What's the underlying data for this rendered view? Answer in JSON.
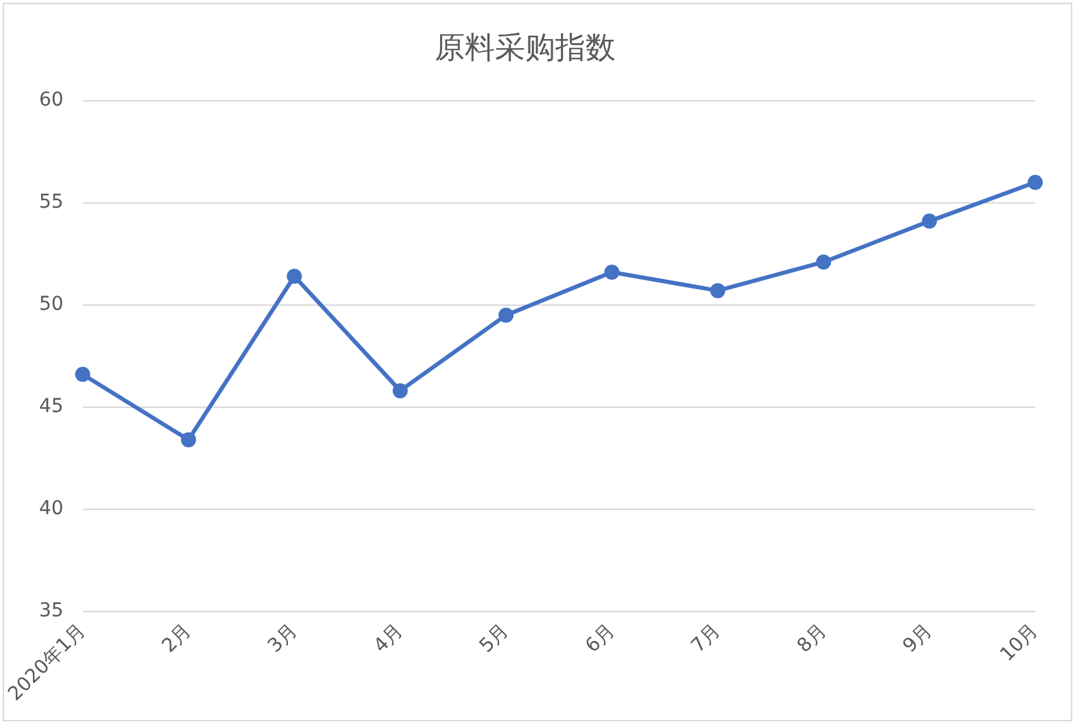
{
  "chart_data": {
    "type": "line",
    "title": "原料采购指数",
    "categories": [
      "2020年1月",
      "2月",
      "3月",
      "4月",
      "5月",
      "6月",
      "7月",
      "8月",
      "9月",
      "10月"
    ],
    "series": [
      {
        "color": "#4472c4",
        "values": [
          46.6,
          43.4,
          51.4,
          45.8,
          49.5,
          51.6,
          50.7,
          52.1,
          54.1,
          56.0
        ]
      }
    ],
    "ylim": [
      35,
      60
    ],
    "yticks": [
      35,
      40,
      45,
      50,
      55,
      60
    ],
    "grid": "y",
    "legend": false,
    "marker": "circle",
    "line_style": "solid"
  }
}
